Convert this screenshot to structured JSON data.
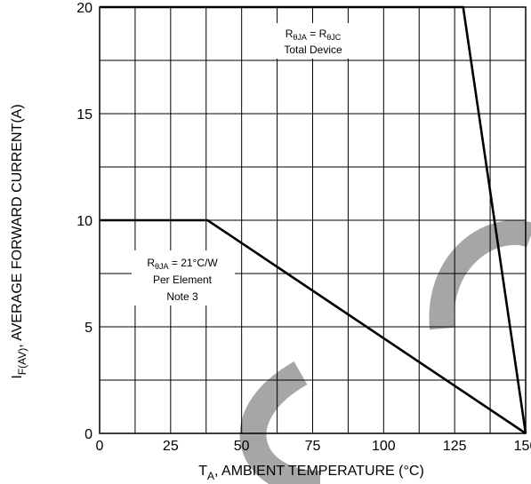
{
  "chart_data": {
    "type": "line",
    "xlabel_main": "T",
    "xlabel_sub": "A",
    "xlabel_rest": ", AMBIENT TEMPERATURE (°C)",
    "ylabel_main": "I",
    "ylabel_sub": "F(AV)",
    "ylabel_rest": ", AVERAGE FORWARD CURRENT(A)",
    "xlim": [
      0,
      150
    ],
    "ylim": [
      0,
      20
    ],
    "x_ticks": [
      0,
      25,
      50,
      75,
      100,
      125,
      150
    ],
    "y_ticks": [
      0,
      5,
      10,
      15,
      20
    ],
    "grid": true,
    "series": [
      {
        "x": [
          0,
          128,
          150
        ],
        "y": [
          20,
          20,
          0
        ]
      },
      {
        "x": [
          0,
          38,
          150
        ],
        "y": [
          10,
          10,
          0
        ]
      }
    ],
    "annotations": {
      "total": {
        "line1": {
          "a": "R",
          "a_sub": "θJA",
          "b": " = R",
          "b_sub": "θJC"
        },
        "line2": "Total Device"
      },
      "element": {
        "line1": {
          "a": "R",
          "a_sub": "θJA",
          "b": " = 21°C/W"
        },
        "line2": "Per Element",
        "line3": "Note 3"
      }
    },
    "watermark_color": "#a6a6a6"
  }
}
